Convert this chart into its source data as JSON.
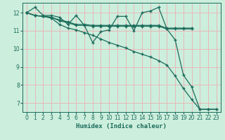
{
  "xlabel": "Humidex (Indice chaleur)",
  "bg_color": "#cceedd",
  "grid_color": "#e8b8b8",
  "line_color": "#1a6b5a",
  "xlim": [
    -0.5,
    23.5
  ],
  "ylim": [
    6.5,
    12.55
  ],
  "yticks": [
    7,
    8,
    9,
    10,
    11,
    12
  ],
  "xticks": [
    0,
    1,
    2,
    3,
    4,
    5,
    6,
    7,
    8,
    9,
    10,
    11,
    12,
    13,
    14,
    15,
    16,
    17,
    18,
    19,
    20,
    21,
    22,
    23
  ],
  "lines": [
    {
      "x": [
        0,
        1,
        2,
        3,
        4,
        5,
        6,
        7,
        8,
        9,
        10,
        11,
        12,
        13,
        14,
        15,
        16,
        17,
        18,
        19,
        20,
        21,
        22,
        23
      ],
      "y": [
        12.0,
        12.3,
        11.85,
        11.85,
        11.75,
        11.35,
        11.85,
        11.3,
        10.35,
        10.95,
        11.05,
        11.8,
        11.8,
        11.0,
        12.0,
        12.1,
        12.3,
        11.1,
        10.5,
        8.55,
        7.9,
        6.65,
        6.65,
        6.65
      ]
    },
    {
      "x": [
        0,
        1,
        2,
        3,
        4,
        5,
        6,
        7,
        8,
        9,
        10,
        11,
        12,
        13,
        14,
        15,
        16,
        17,
        18,
        19,
        20
      ],
      "y": [
        12.0,
        11.85,
        11.8,
        11.75,
        11.55,
        11.45,
        11.3,
        11.3,
        11.25,
        11.25,
        11.25,
        11.25,
        11.25,
        11.25,
        11.25,
        11.25,
        11.25,
        11.1,
        11.1,
        11.1,
        11.1
      ]
    },
    {
      "x": [
        0,
        1,
        2,
        3,
        4,
        5,
        6,
        7,
        8,
        9,
        10,
        11,
        12,
        13,
        14,
        15,
        16,
        17,
        18,
        19,
        20
      ],
      "y": [
        12.0,
        11.85,
        11.8,
        11.75,
        11.6,
        11.5,
        11.35,
        11.35,
        11.3,
        11.3,
        11.3,
        11.3,
        11.3,
        11.3,
        11.3,
        11.3,
        11.3,
        11.15,
        11.15,
        11.15,
        11.15
      ]
    },
    {
      "x": [
        0,
        1,
        2,
        3,
        4,
        5,
        6,
        7,
        8,
        9,
        10,
        11,
        12,
        13,
        14,
        15,
        16,
        17,
        18,
        19,
        20,
        21,
        22,
        23
      ],
      "y": [
        12.0,
        11.85,
        11.8,
        11.7,
        11.35,
        11.15,
        11.05,
        10.9,
        10.75,
        10.55,
        10.35,
        10.2,
        10.05,
        9.85,
        9.7,
        9.55,
        9.35,
        9.1,
        8.5,
        7.8,
        7.2,
        6.65,
        6.65,
        6.65
      ]
    }
  ],
  "marker": "+",
  "markersize": 3,
  "linewidth": 0.9
}
